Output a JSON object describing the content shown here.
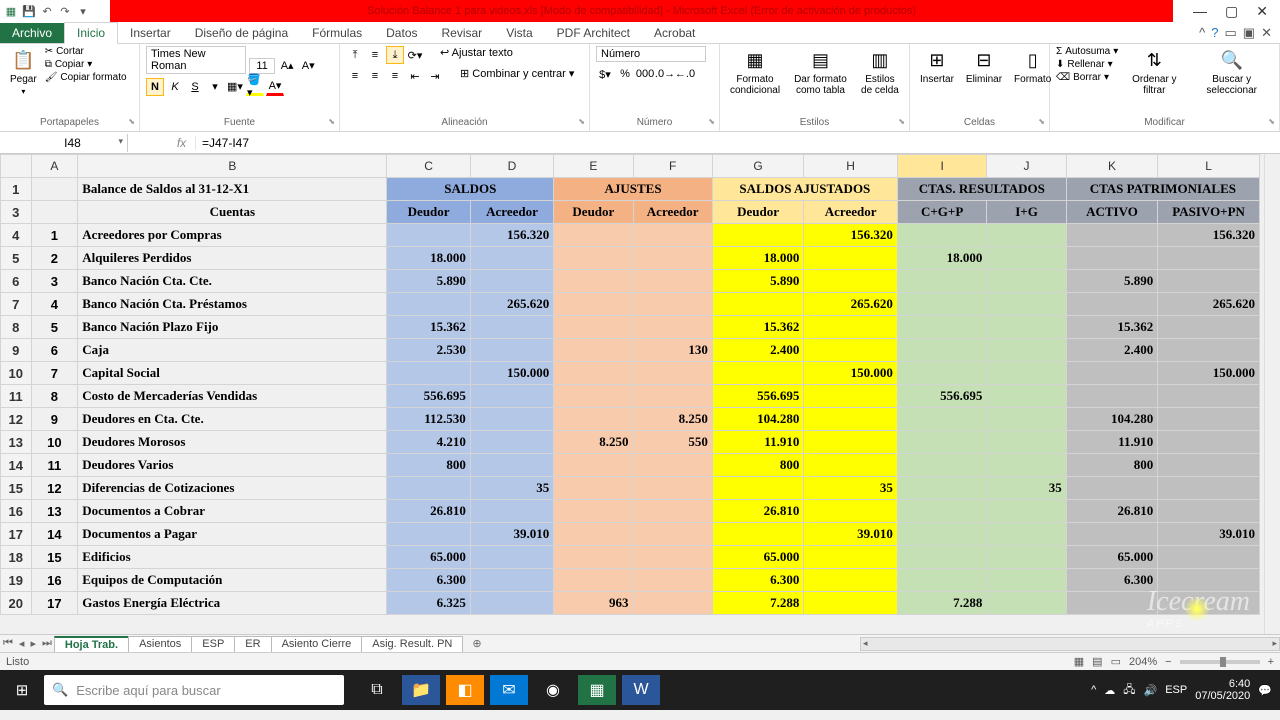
{
  "titlebar": {
    "title": "Solución Balance 1 para videos.xls  [Modo de compatibilidad]  -  Microsoft Excel (Error de activación de productos)"
  },
  "menutabs": {
    "file": "Archivo",
    "items": [
      "Inicio",
      "Insertar",
      "Diseño de página",
      "Fórmulas",
      "Datos",
      "Revisar",
      "Vista",
      "PDF Architect",
      "Acrobat"
    ],
    "active": 0
  },
  "ribbon": {
    "portapapeles": {
      "label": "Portapapeles",
      "pegar": "Pegar",
      "cortar": "Cortar",
      "copiar": "Copiar",
      "copiar_fmt": "Copiar formato"
    },
    "fuente": {
      "label": "Fuente",
      "font": "Times New Roman",
      "size": "11"
    },
    "alineacion": {
      "label": "Alineación",
      "ajustar": "Ajustar texto",
      "combinar": "Combinar y centrar"
    },
    "numero": {
      "label": "Número",
      "fmt": "Número"
    },
    "estilos": {
      "label": "Estilos",
      "fc": "Formato condicional",
      "dft": "Dar formato como tabla",
      "ec": "Estilos de celda"
    },
    "celdas": {
      "label": "Celdas",
      "ins": "Insertar",
      "elim": "Eliminar",
      "fmt": "Formato"
    },
    "modificar": {
      "label": "Modificar",
      "autosuma": "Autosuma",
      "rellenar": "Rellenar",
      "borrar": "Borrar",
      "ordenar": "Ordenar y filtrar",
      "buscar": "Buscar y seleccionar"
    }
  },
  "fxbar": {
    "cell": "I48",
    "formula": "=J47-I47"
  },
  "columns": [
    "A",
    "B",
    "C",
    "D",
    "E",
    "F",
    "G",
    "H",
    "I",
    "J",
    "K",
    "L"
  ],
  "sheet": {
    "title": "Balance de Saldos al 31-12-X1",
    "grp_saldos": "SALDOS",
    "grp_ajustes": "AJUSTES",
    "grp_saldos_aj": "SALDOS AJUSTADOS",
    "grp_ctas_res": "CTAS. RESULTADOS",
    "grp_ctas_pat": "CTAS PATRIMONIALES",
    "hdr_cuentas": "Cuentas",
    "hdr_deudor": "Deudor",
    "hdr_acreedor": "Acreedor",
    "hdr_cgp": "C+G+P",
    "hdr_ig": "I+G",
    "hdr_activo": "ACTIVO",
    "hdr_paspn": "PASIVO+PN",
    "rows": [
      {
        "n": "1",
        "cuenta": "Acreedores por Compras",
        "c": "",
        "d": "156.320",
        "e": "",
        "f": "",
        "g": "",
        "h": "156.320",
        "i": "",
        "j": "",
        "k": "",
        "l": "156.320"
      },
      {
        "n": "2",
        "cuenta": "Alquileres Perdidos",
        "c": "18.000",
        "d": "",
        "e": "",
        "f": "",
        "g": "18.000",
        "h": "",
        "i": "18.000",
        "j": "",
        "k": "",
        "l": ""
      },
      {
        "n": "3",
        "cuenta": "Banco Nación Cta. Cte.",
        "c": "5.890",
        "d": "",
        "e": "",
        "f": "",
        "g": "5.890",
        "h": "",
        "i": "",
        "j": "",
        "k": "5.890",
        "l": ""
      },
      {
        "n": "4",
        "cuenta": "Banco Nación Cta. Préstamos",
        "c": "",
        "d": "265.620",
        "e": "",
        "f": "",
        "g": "",
        "h": "265.620",
        "i": "",
        "j": "",
        "k": "",
        "l": "265.620"
      },
      {
        "n": "5",
        "cuenta": "Banco Nación Plazo Fijo",
        "c": "15.362",
        "d": "",
        "e": "",
        "f": "",
        "g": "15.362",
        "h": "",
        "i": "",
        "j": "",
        "k": "15.362",
        "l": ""
      },
      {
        "n": "6",
        "cuenta": "Caja",
        "c": "2.530",
        "d": "",
        "e": "",
        "f": "130",
        "g": "2.400",
        "h": "",
        "i": "",
        "j": "",
        "k": "2.400",
        "l": ""
      },
      {
        "n": "7",
        "cuenta": "Capital Social",
        "c": "",
        "d": "150.000",
        "e": "",
        "f": "",
        "g": "",
        "h": "150.000",
        "i": "",
        "j": "",
        "k": "",
        "l": "150.000"
      },
      {
        "n": "8",
        "cuenta": "Costo de Mercaderías Vendidas",
        "c": "556.695",
        "d": "",
        "e": "",
        "f": "",
        "g": "556.695",
        "h": "",
        "i": "556.695",
        "j": "",
        "k": "",
        "l": ""
      },
      {
        "n": "9",
        "cuenta": "Deudores en Cta. Cte.",
        "c": "112.530",
        "d": "",
        "e": "",
        "f": "8.250",
        "g": "104.280",
        "h": "",
        "i": "",
        "j": "",
        "k": "104.280",
        "l": ""
      },
      {
        "n": "10",
        "cuenta": "Deudores Morosos",
        "c": "4.210",
        "d": "",
        "e": "8.250",
        "f": "550",
        "g": "11.910",
        "h": "",
        "i": "",
        "j": "",
        "k": "11.910",
        "l": ""
      },
      {
        "n": "11",
        "cuenta": "Deudores Varios",
        "c": "800",
        "d": "",
        "e": "",
        "f": "",
        "g": "800",
        "h": "",
        "i": "",
        "j": "",
        "k": "800",
        "l": ""
      },
      {
        "n": "12",
        "cuenta": "Diferencias de Cotizaciones",
        "c": "",
        "d": "35",
        "e": "",
        "f": "",
        "g": "",
        "h": "35",
        "i": "",
        "j": "35",
        "k": "",
        "l": ""
      },
      {
        "n": "13",
        "cuenta": "Documentos a Cobrar",
        "c": "26.810",
        "d": "",
        "e": "",
        "f": "",
        "g": "26.810",
        "h": "",
        "i": "",
        "j": "",
        "k": "26.810",
        "l": ""
      },
      {
        "n": "14",
        "cuenta": "Documentos a Pagar",
        "c": "",
        "d": "39.010",
        "e": "",
        "f": "",
        "g": "",
        "h": "39.010",
        "i": "",
        "j": "",
        "k": "",
        "l": "39.010"
      },
      {
        "n": "15",
        "cuenta": "Edificios",
        "c": "65.000",
        "d": "",
        "e": "",
        "f": "",
        "g": "65.000",
        "h": "",
        "i": "",
        "j": "",
        "k": "65.000",
        "l": ""
      },
      {
        "n": "16",
        "cuenta": "Equipos de Computación",
        "c": "6.300",
        "d": "",
        "e": "",
        "f": "",
        "g": "6.300",
        "h": "",
        "i": "",
        "j": "",
        "k": "6.300",
        "l": ""
      },
      {
        "n": "17",
        "cuenta": "Gastos Energía Eléctrica",
        "c": "6.325",
        "d": "",
        "e": "963",
        "f": "",
        "g": "7.288",
        "h": "",
        "i": "7.288",
        "j": "",
        "k": "",
        "l": ""
      }
    ]
  },
  "tabs": {
    "items": [
      "Hoja Trab.",
      "Asientos",
      "ESP",
      "ER",
      "Asiento Cierre",
      "Asig. Result. PN"
    ],
    "active": 0
  },
  "statusbar": {
    "ready": "Listo",
    "zoom": "204%"
  },
  "taskbar": {
    "search_placeholder": "Escribe aquí para buscar",
    "clock_time": "6:40",
    "clock_date": "07/05/2020"
  },
  "colors": {
    "blue_hdr": "#8faadc",
    "blue_body": "#b4c7e7",
    "orange_hdr": "#f4b183",
    "orange_body": "#f8cbad",
    "yellow_hdr": "#ffe699",
    "yellow_body": "#ffff00",
    "olive_body": "#c5e0b4",
    "grey_hdr": "#9ca3af",
    "grey_body": "#bfbfbf"
  }
}
